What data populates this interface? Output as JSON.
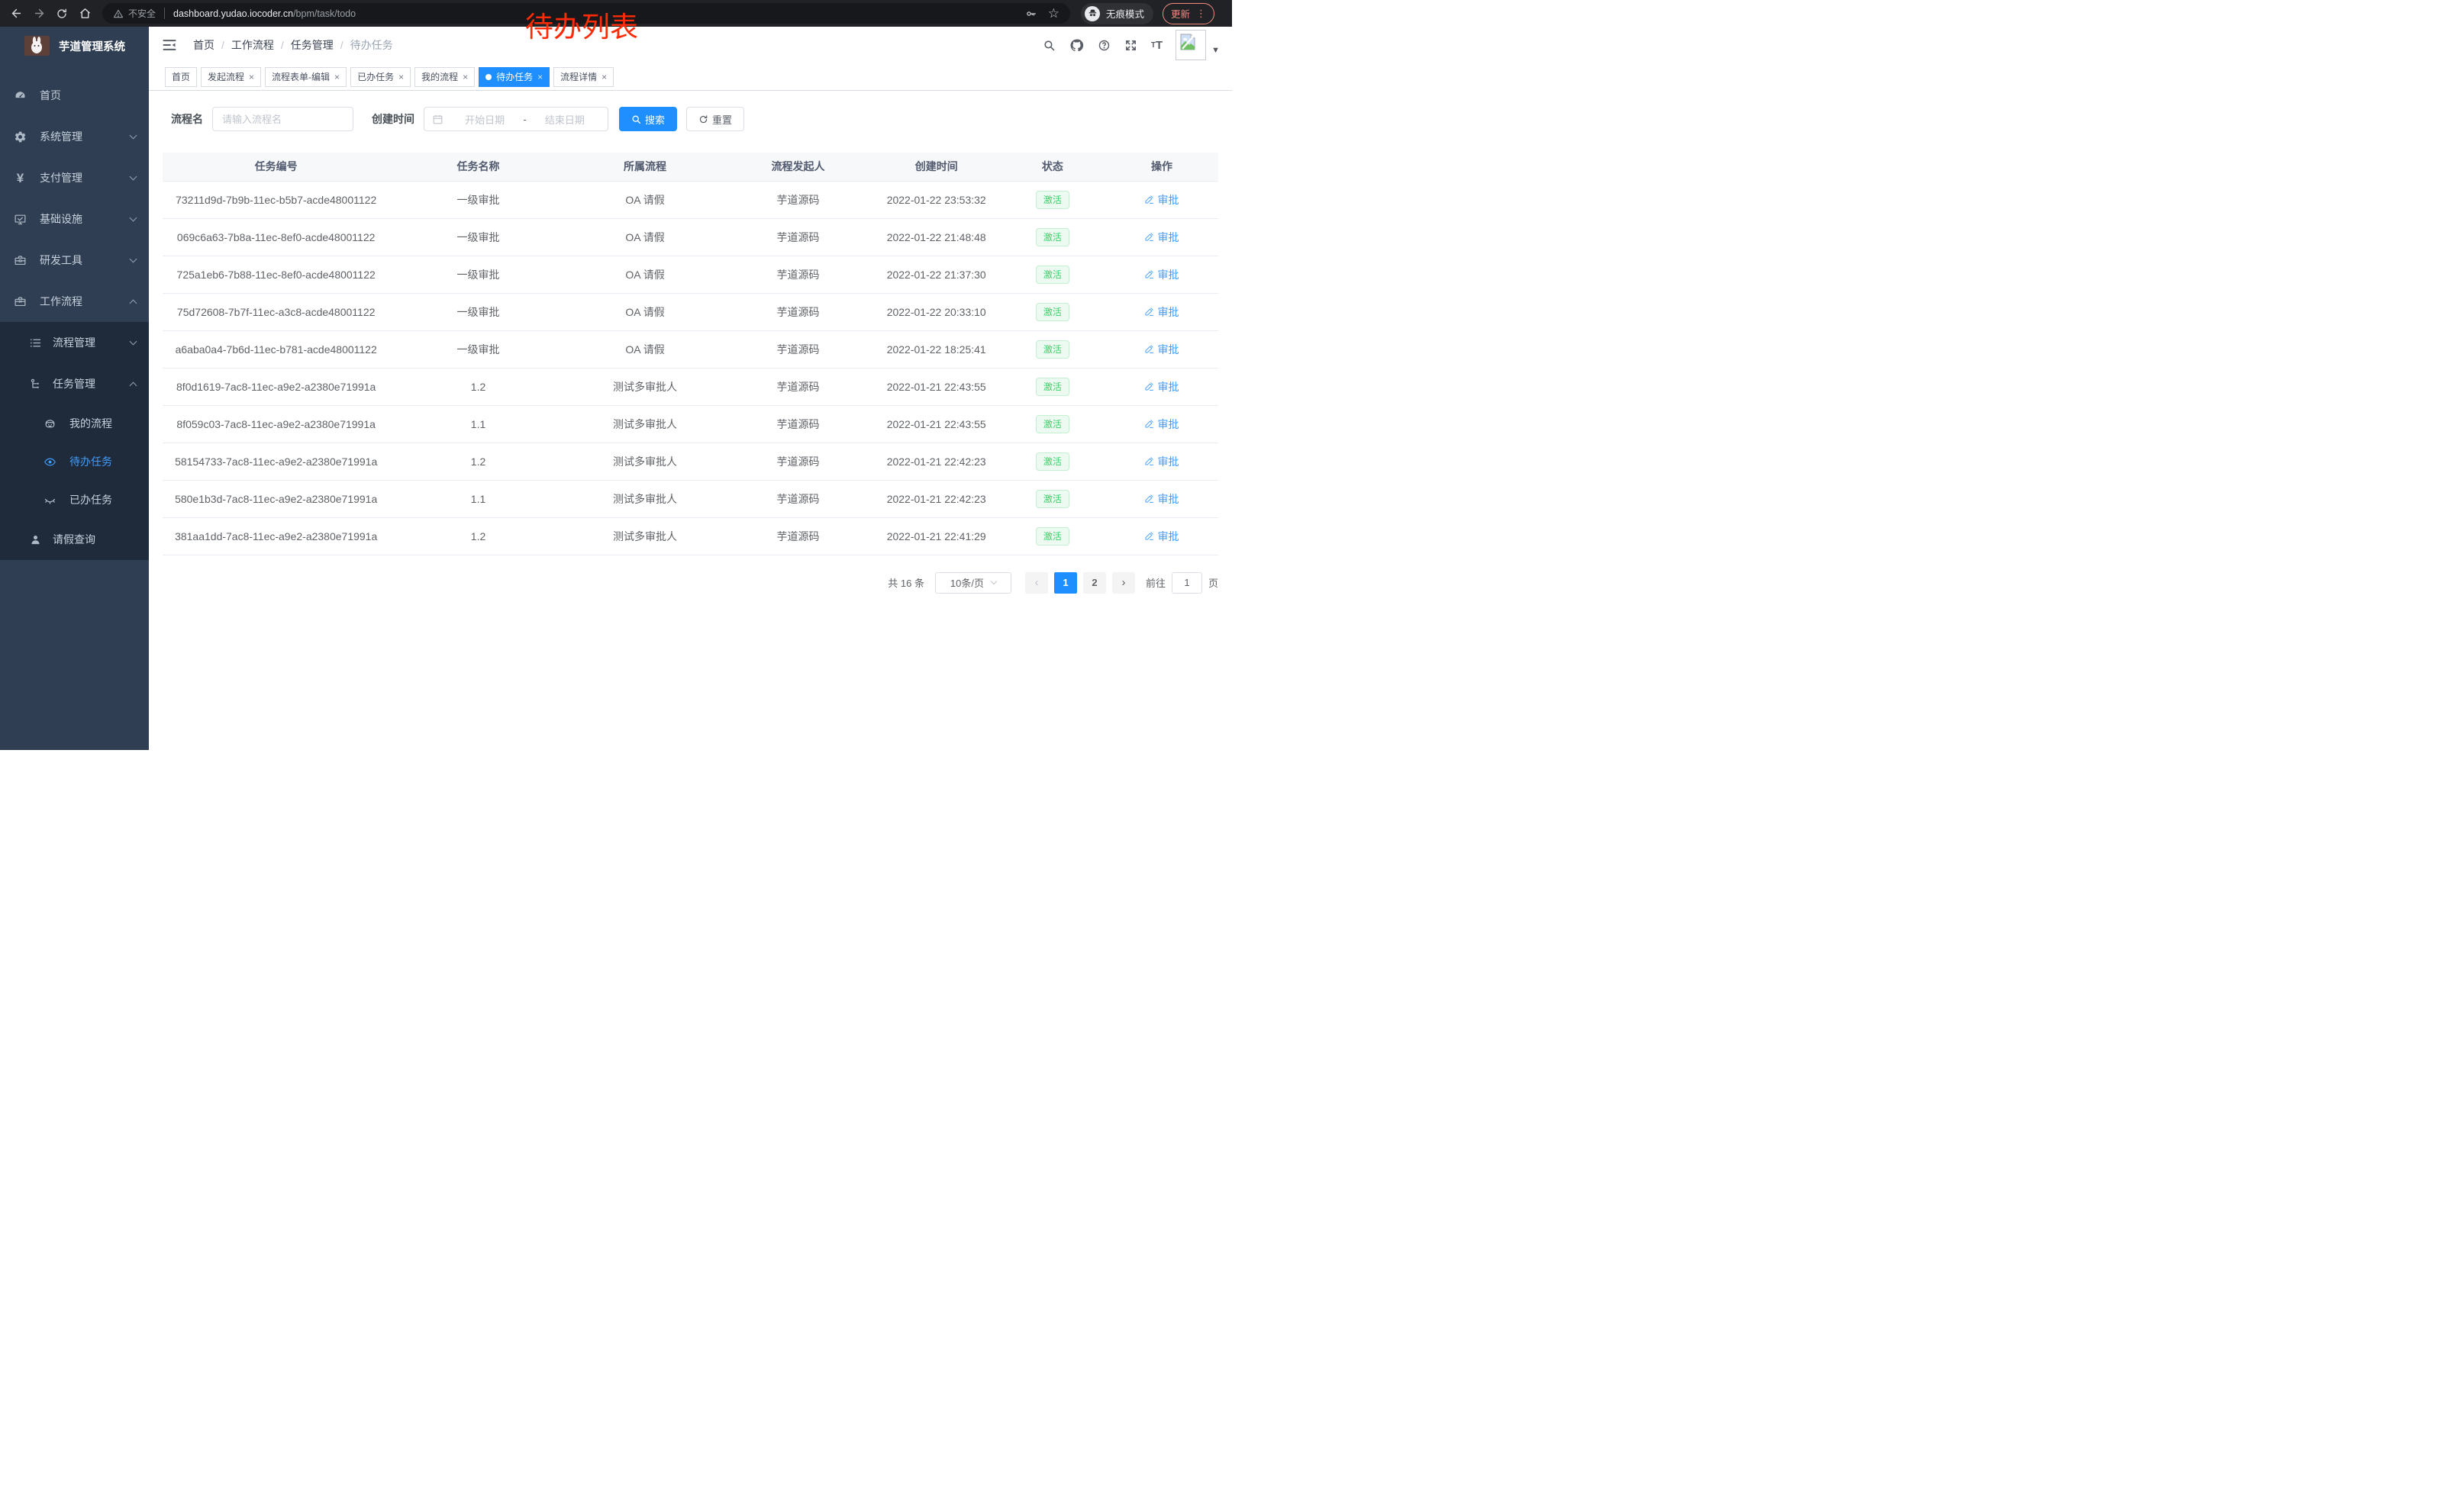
{
  "browser": {
    "security_label": "不安全",
    "url_host": "dashboard.yudao.iocoder.cn",
    "url_path": "/bpm/task/todo",
    "incognito_label": "无痕模式",
    "update_label": "更新"
  },
  "annotation": {
    "text": "待办列表",
    "color": "#ff2b07"
  },
  "glyphs": {
    "close": "×",
    "star": "☆",
    "kebab": "⋮",
    "caret": "▼",
    "prev": "‹",
    "next": "›",
    "yen": "¥",
    "question": "?",
    "font_large": "T",
    "font_small": "T"
  },
  "sidebar": {
    "title": "芋道管理系统",
    "items": [
      {
        "label": "首页",
        "icon": "dashboard-icon",
        "level": 0,
        "chevron": "none",
        "active": false,
        "sub": false
      },
      {
        "label": "系统管理",
        "icon": "gear-icon",
        "level": 0,
        "chevron": "down",
        "active": false,
        "sub": false
      },
      {
        "label": "支付管理",
        "icon": "yen-icon",
        "level": 0,
        "chevron": "down",
        "active": false,
        "sub": false
      },
      {
        "label": "基础设施",
        "icon": "monitor-icon",
        "level": 0,
        "chevron": "down",
        "active": false,
        "sub": false
      },
      {
        "label": "研发工具",
        "icon": "toolbox-icon",
        "level": 0,
        "chevron": "down",
        "active": false,
        "sub": false
      },
      {
        "label": "工作流程",
        "icon": "briefcase-icon",
        "level": 0,
        "chevron": "up",
        "active": false,
        "sub": false
      },
      {
        "label": "流程管理",
        "icon": "list-icon",
        "level": 1,
        "chevron": "down",
        "active": false,
        "sub": true
      },
      {
        "label": "任务管理",
        "icon": "flow-icon",
        "level": 1,
        "chevron": "up",
        "active": false,
        "sub": true
      },
      {
        "label": "我的流程",
        "icon": "face-icon",
        "level": 2,
        "chevron": "none",
        "active": false,
        "sub": true
      },
      {
        "label": "待办任务",
        "icon": "eye-open-icon",
        "level": 2,
        "chevron": "none",
        "active": true,
        "sub": true
      },
      {
        "label": "已办任务",
        "icon": "eye-closed-icon",
        "level": 2,
        "chevron": "none",
        "active": false,
        "sub": true
      },
      {
        "label": "请假查询",
        "icon": "user-icon",
        "level": 1,
        "chevron": "none",
        "active": false,
        "sub": true
      }
    ]
  },
  "navbar": {
    "breadcrumb": [
      "首页",
      "工作流程",
      "任务管理",
      "待办任务"
    ]
  },
  "tabs": [
    {
      "label": "首页",
      "closable": false,
      "active": false
    },
    {
      "label": "发起流程",
      "closable": true,
      "active": false
    },
    {
      "label": "流程表单-编辑",
      "closable": true,
      "active": false
    },
    {
      "label": "已办任务",
      "closable": true,
      "active": false
    },
    {
      "label": "我的流程",
      "closable": true,
      "active": false
    },
    {
      "label": "待办任务",
      "closable": true,
      "active": true
    },
    {
      "label": "流程详情",
      "closable": true,
      "active": false
    }
  ],
  "filters": {
    "name_label": "流程名",
    "name_placeholder": "请输入流程名",
    "time_label": "创建时间",
    "start_placeholder": "开始日期",
    "separator": "-",
    "end_placeholder": "结束日期",
    "search_label": "搜索",
    "reset_label": "重置"
  },
  "table": {
    "columns": [
      "任务编号",
      "任务名称",
      "所属流程",
      "流程发起人",
      "创建时间",
      "状态",
      "操作"
    ],
    "status_label": "激活",
    "action_label": "审批",
    "rows": [
      {
        "id": "73211d9d-7b9b-11ec-b5b7-acde48001122",
        "name": "一级审批",
        "process": "OA 请假",
        "starter": "芋道源码",
        "time": "2022-01-22 23:53:32"
      },
      {
        "id": "069c6a63-7b8a-11ec-8ef0-acde48001122",
        "name": "一级审批",
        "process": "OA 请假",
        "starter": "芋道源码",
        "time": "2022-01-22 21:48:48"
      },
      {
        "id": "725a1eb6-7b88-11ec-8ef0-acde48001122",
        "name": "一级审批",
        "process": "OA 请假",
        "starter": "芋道源码",
        "time": "2022-01-22 21:37:30"
      },
      {
        "id": "75d72608-7b7f-11ec-a3c8-acde48001122",
        "name": "一级审批",
        "process": "OA 请假",
        "starter": "芋道源码",
        "time": "2022-01-22 20:33:10"
      },
      {
        "id": "a6aba0a4-7b6d-11ec-b781-acde48001122",
        "name": "一级审批",
        "process": "OA 请假",
        "starter": "芋道源码",
        "time": "2022-01-22 18:25:41"
      },
      {
        "id": "8f0d1619-7ac8-11ec-a9e2-a2380e71991a",
        "name": "1.2",
        "process": "测试多审批人",
        "starter": "芋道源码",
        "time": "2022-01-21 22:43:55"
      },
      {
        "id": "8f059c03-7ac8-11ec-a9e2-a2380e71991a",
        "name": "1.1",
        "process": "测试多审批人",
        "starter": "芋道源码",
        "time": "2022-01-21 22:43:55"
      },
      {
        "id": "58154733-7ac8-11ec-a9e2-a2380e71991a",
        "name": "1.2",
        "process": "测试多审批人",
        "starter": "芋道源码",
        "time": "2022-01-21 22:42:23"
      },
      {
        "id": "580e1b3d-7ac8-11ec-a9e2-a2380e71991a",
        "name": "1.1",
        "process": "测试多审批人",
        "starter": "芋道源码",
        "time": "2022-01-21 22:42:23"
      },
      {
        "id": "381aa1dd-7ac8-11ec-a9e2-a2380e71991a",
        "name": "1.2",
        "process": "测试多审批人",
        "starter": "芋道源码",
        "time": "2022-01-21 22:41:29"
      }
    ]
  },
  "pagination": {
    "total": "共 16 条",
    "page_size": "10条/页",
    "pages": [
      "1",
      "2"
    ],
    "active_page": "1",
    "goto_label": "前往",
    "goto_value": "1",
    "unit_label": "页"
  }
}
